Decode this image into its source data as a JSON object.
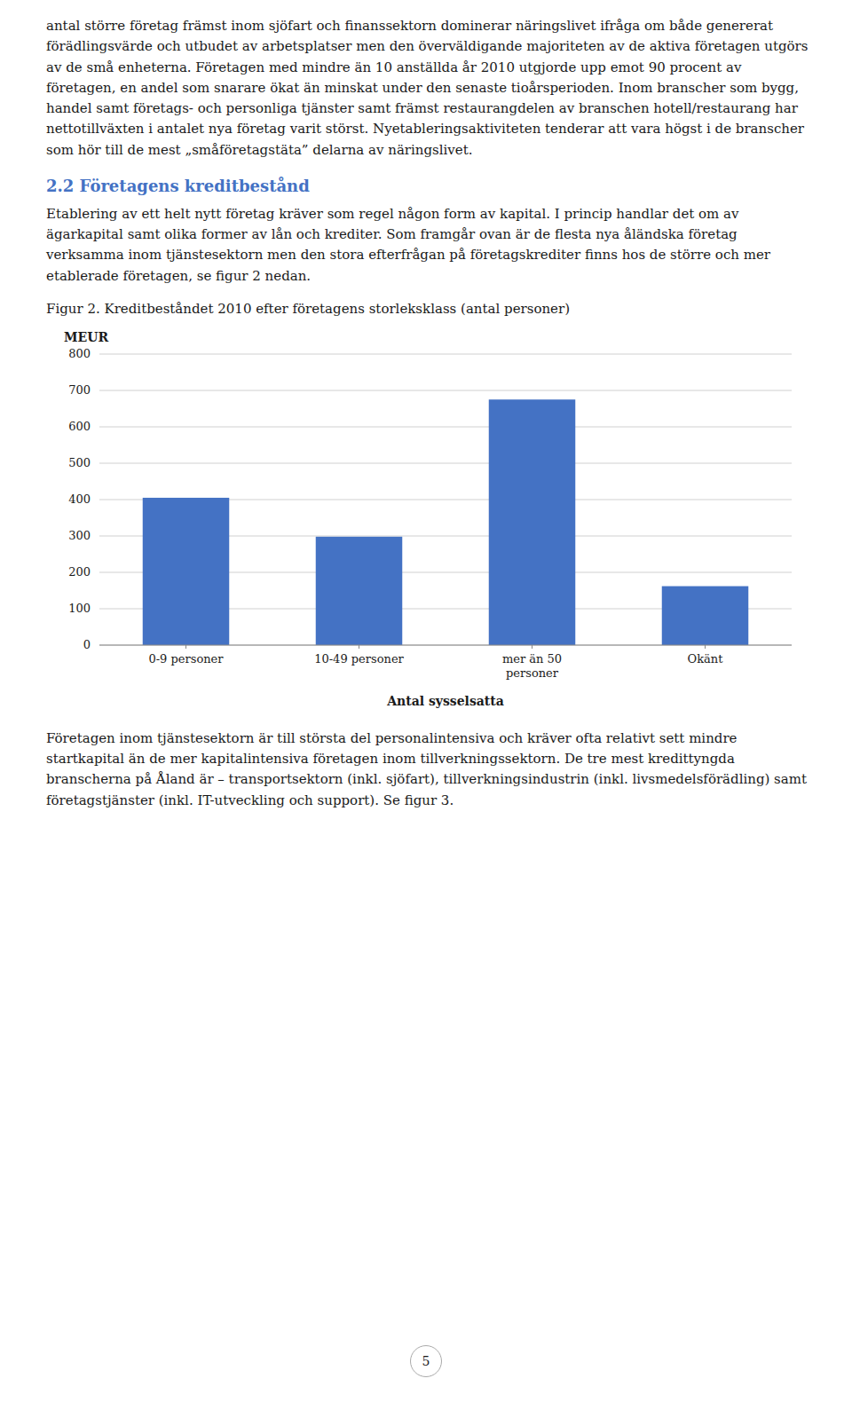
{
  "page": {
    "paragraph1": "antal större företag främst inom sjöfart och finanssektorn dominerar näringslivet ifråga om både genererat förädlingsvärde och utbudet av arbetsplatser men den överväldigande majoriteten av de aktiva företagen utgörs av de små enheterna. Företagen med mindre än 10 anställda år 2010 utgjorde upp emot 90 procent av företagen, en andel som snarare ökat än minskat under den senaste tioårsperioden. Inom branscher som bygg, handel samt företags- och personliga tjänster samt främst restaurangdelen av branschen hotell/restaurang har nettotillväxten i antalet nya företag varit störst. Nyetableringsaktiviteten tenderar att vara högst i de branscher som hör till de mest „småföretagstäta” delarna av näringslivet.",
    "heading": "2.2 Företagens kreditbestånd",
    "heading_color": "#4472c4",
    "paragraph2": "Etablering av ett helt nytt företag kräver som regel någon form av kapital. I princip handlar det om av ägarkapital samt olika former av lån och krediter. Som framgår ovan är de flesta nya åländska företag verksamma inom tjänstesektorn men den stora efterfrågan på företagskrediter finns hos de större och mer etablerade företagen, se figur 2 nedan.",
    "paragraph3": "Företagen inom tjänstesektorn är till största del personalintensiva och kräver ofta relativt sett mindre startkapital än de mer kapitalintensiva företagen inom tillverkningssektorn.  De tre mest kredittyngda branscherna på Åland är – transportsektorn (inkl. sjöfart), tillverkningsindustrin (inkl. livsmedelsförädling) samt företagstjänster (inkl. IT-utveckling och support). Se figur 3.",
    "page_number": "5"
  },
  "chart_data": {
    "type": "bar",
    "title": "Figur 2. Kreditbeståndet 2010 efter företagens storleksklass (antal personer)",
    "ylabel": "MEUR",
    "xlabel": "Antal sysselsatta",
    "categories": [
      "0-9 personer",
      "10-49 personer",
      "mer än 50\npersoner",
      "Okänt"
    ],
    "values": [
      405,
      298,
      675,
      162
    ],
    "color": "#4472c4",
    "ylim": [
      0,
      800
    ],
    "yticks": [
      0,
      100,
      200,
      300,
      400,
      500,
      600,
      700,
      800
    ],
    "grid": true
  }
}
